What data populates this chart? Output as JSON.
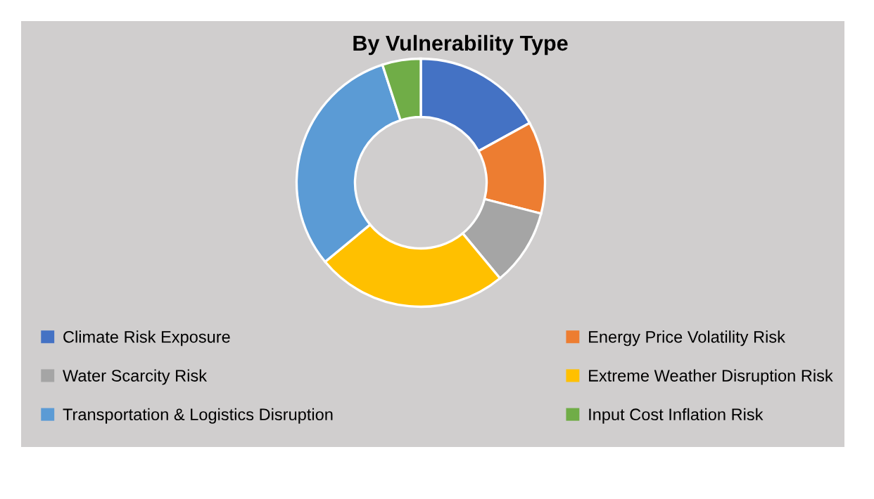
{
  "chart_data": {
    "type": "donut",
    "title": "By Vulnerability Type",
    "categories": [
      "Climate Risk Exposure",
      "Energy Price Volatility Risk",
      "Water Scarcity Risk",
      "Extreme Weather Disruption Risk",
      "Transportation & Logistics Disruption",
      "Input Cost Inflation Risk"
    ],
    "values": [
      17,
      12,
      10,
      25,
      31,
      5
    ],
    "colors": [
      "#4472c4",
      "#ed7d31",
      "#a5a5a5",
      "#ffc000",
      "#5b9bd5",
      "#70ad47"
    ],
    "legend": "bottom"
  }
}
